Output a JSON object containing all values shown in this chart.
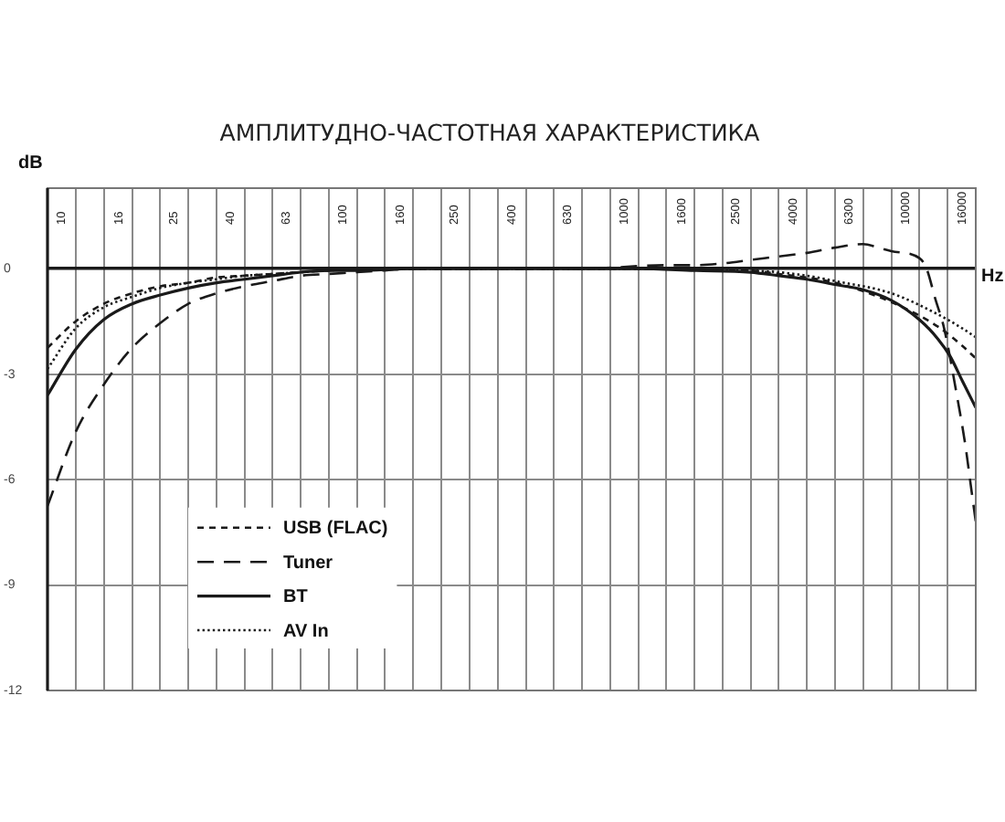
{
  "chart_data": {
    "type": "line",
    "title": "АМПЛИТУДНО-ЧАСТОТНАЯ ХАРАКТЕРИСТИКА",
    "xlabel": "Hz",
    "ylabel": "dB",
    "log": "x",
    "xlim": [
      8.9,
      17800
    ],
    "xticks": [
      10,
      {
        "value": 11.2,
        "label": null
      },
      {
        "value": 14.1,
        "label": null
      },
      16,
      {
        "value": 17.8,
        "label": null
      },
      {
        "value": 22.4,
        "label": null
      },
      25,
      {
        "value": 28.2,
        "label": null
      },
      {
        "value": 35.5,
        "label": null
      },
      40,
      {
        "value": 44.7,
        "label": null
      },
      {
        "value": 56.2,
        "label": null
      },
      63,
      {
        "value": 70.8,
        "label": null
      },
      {
        "value": 89.1,
        "label": null
      },
      100,
      {
        "value": 112,
        "label": null
      },
      {
        "value": 141,
        "label": null
      },
      160,
      {
        "value": 178,
        "label": null
      },
      {
        "value": 224,
        "label": null
      },
      250,
      {
        "value": 282,
        "label": null
      },
      {
        "value": 355,
        "label": null
      },
      400,
      {
        "value": 447,
        "label": null
      },
      {
        "value": 562,
        "label": null
      },
      630,
      {
        "value": 708,
        "label": null
      },
      {
        "value": 891,
        "label": null
      },
      1000,
      {
        "value": 1122,
        "label": null
      },
      {
        "value": 1413,
        "label": null
      },
      1600,
      {
        "value": 1778,
        "label": null
      },
      {
        "value": 2239,
        "label": null
      },
      2500,
      {
        "value": 2818,
        "label": null
      },
      {
        "value": 3548,
        "label": null
      },
      4000,
      {
        "value": 4467,
        "label": null
      },
      {
        "value": 5623,
        "label": null
      },
      6300,
      {
        "value": 7079,
        "label": null
      },
      {
        "value": 8913,
        "label": null
      },
      10000,
      {
        "value": 11220,
        "label": null
      },
      {
        "value": 14130,
        "label": null
      },
      16000
    ],
    "ylim": [
      -12,
      1.2
    ],
    "yticks": [
      0,
      -3,
      -6,
      -9,
      -12
    ],
    "grid": true,
    "legend": "bottom left",
    "marker": "none",
    "series": [
      {
        "name": "USB (FLAC)",
        "color": "#1a1a1a",
        "line_style": "dashed",
        "x": [
          8.9,
          11.2,
          14.1,
          17.8,
          22.4,
          28.2,
          35.5,
          44.7,
          56.2,
          70.8,
          89.1,
          141,
          282,
          1778,
          2818,
          3548,
          4467,
          5623,
          8913,
          13060,
          15960,
          17800
        ],
        "values": [
          -2.25,
          -1.5,
          -1,
          -0.7,
          -0.5,
          -0.4,
          -0.25,
          -0.2,
          -0.15,
          -0.1,
          -0.05,
          0,
          0,
          0,
          -0.05,
          -0.15,
          -0.25,
          -0.4,
          -0.95,
          -1.65,
          -2.2,
          -2.55
        ]
      },
      {
        "name": "Tuner",
        "color": "#1a1a1a",
        "line_style": "dashed",
        "x": [
          8.9,
          11.2,
          14.1,
          17.8,
          22.4,
          28.2,
          35.5,
          44.7,
          56.2,
          70.8,
          89.1,
          112,
          141,
          178,
          282,
          708,
          1413,
          1778,
          2239,
          2818,
          3548,
          4467,
          5623,
          7079,
          8000,
          8913,
          11220,
          11900,
          12770,
          13740,
          15170,
          16330,
          17180,
          17800
        ],
        "values": [
          -6.75,
          -4.65,
          -3.3,
          -2.25,
          -1.55,
          -1,
          -0.7,
          -0.5,
          -0.35,
          -0.2,
          -0.15,
          -0.1,
          -0.05,
          0,
          0,
          0,
          0.1,
          0.1,
          0.15,
          0.25,
          0.35,
          0.45,
          0.6,
          0.7,
          0.6,
          0.5,
          0.3,
          0,
          -0.85,
          -1.7,
          -3.5,
          -5,
          -6.3,
          -7.2
        ]
      },
      {
        "name": "BT",
        "color": "#1a1a1a",
        "line_style": "solid",
        "x": [
          8.9,
          11.2,
          14.1,
          17.8,
          22.4,
          28.2,
          35.5,
          44.7,
          56.2,
          70.8,
          89.1,
          112,
          178,
          1122,
          1778,
          2818,
          3548,
          4467,
          5623,
          7079,
          8913,
          11220,
          13060,
          14450,
          15960,
          17800
        ],
        "values": [
          -3.6,
          -2.3,
          -1.45,
          -1,
          -0.75,
          -0.55,
          -0.4,
          -0.3,
          -0.2,
          -0.1,
          -0.05,
          -0.05,
          0,
          0,
          -0.05,
          -0.1,
          -0.2,
          -0.3,
          -0.45,
          -0.6,
          -0.9,
          -1.45,
          -2,
          -2.5,
          -3.2,
          -3.95
        ]
      },
      {
        "name": "AV In",
        "color": "#1a1a1a",
        "line_style": "dotted",
        "x": [
          8.9,
          11.2,
          14.1,
          17.8,
          22.4,
          28.2,
          35.5,
          44.7,
          56.2,
          70.8,
          89.1,
          141,
          282,
          1778,
          2818,
          3548,
          4467,
          5623,
          8913,
          13060,
          15960,
          17800
        ],
        "values": [
          -2.85,
          -1.7,
          -1.1,
          -0.8,
          -0.55,
          -0.4,
          -0.3,
          -0.2,
          -0.15,
          -0.1,
          -0.05,
          0,
          0,
          0,
          -0.05,
          -0.1,
          -0.2,
          -0.35,
          -0.7,
          -1.3,
          -1.7,
          -1.95
        ]
      }
    ]
  }
}
